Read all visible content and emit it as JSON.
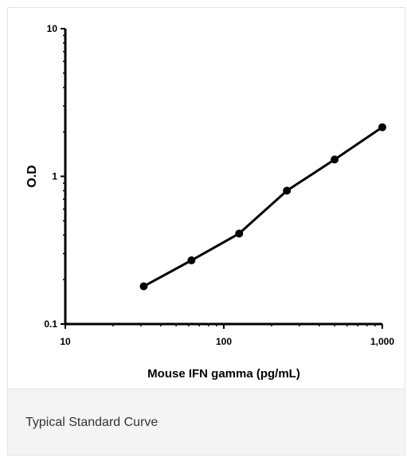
{
  "chart_data": {
    "type": "line",
    "x_scale": "log",
    "y_scale": "log",
    "xlabel": "Mouse IFN gamma (pg/mL)",
    "ylabel": "O.D",
    "xlim": [
      10,
      1000
    ],
    "ylim": [
      0.1,
      10
    ],
    "x_ticks": [
      10,
      100,
      1000
    ],
    "x_tick_labels": [
      "10",
      "100",
      "1,000"
    ],
    "y_ticks": [
      0.1,
      1,
      10
    ],
    "y_tick_labels": [
      "0.1",
      "1",
      "10"
    ],
    "grid": false,
    "series": [
      {
        "x": [
          31.25,
          62.5,
          125,
          250,
          500,
          1000
        ],
        "y": [
          0.18,
          0.27,
          0.41,
          0.8,
          1.3,
          2.15
        ]
      }
    ],
    "line_color": "#000000"
  },
  "caption": "Typical Standard Curve"
}
